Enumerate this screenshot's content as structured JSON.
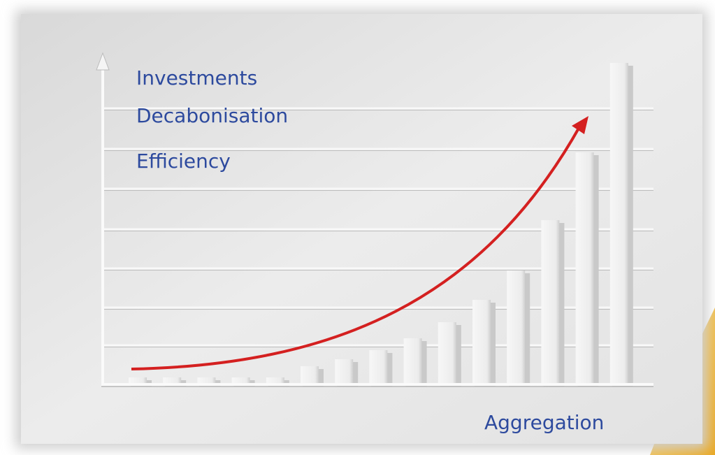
{
  "labels": {
    "top": [
      "Investments",
      "Decabonisation",
      "Efficiency"
    ],
    "bottom": "Aggregation"
  }
}
